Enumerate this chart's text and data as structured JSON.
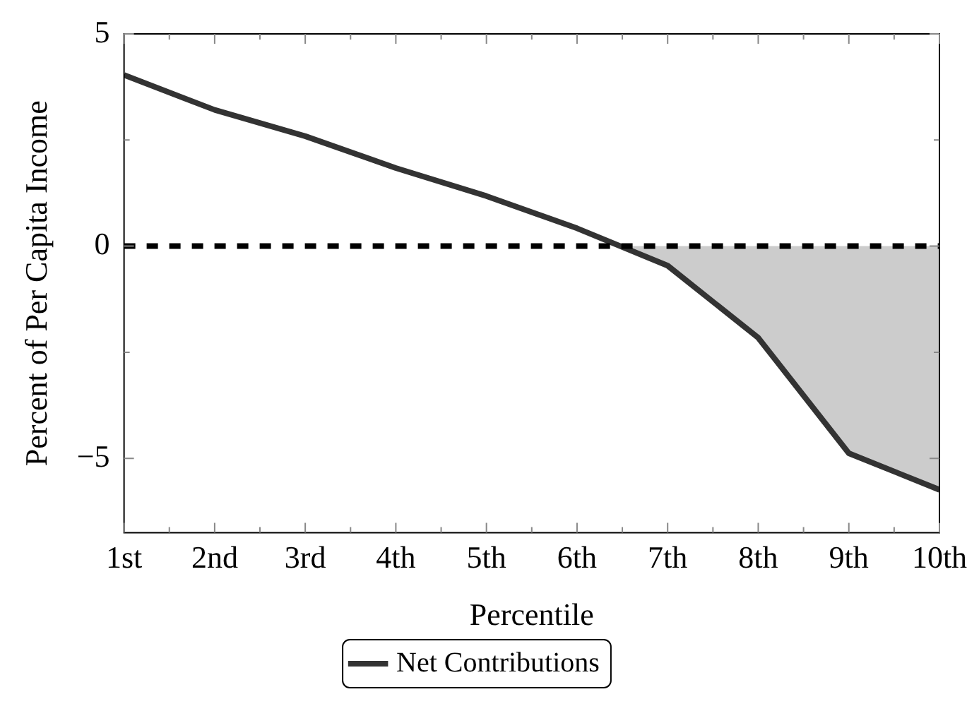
{
  "chart_data": {
    "type": "line",
    "xlabel": "Percentile",
    "ylabel": "Percent of Per Capita Income",
    "x": [
      1,
      2,
      3,
      4,
      5,
      6,
      7,
      8,
      9,
      10
    ],
    "series": [
      {
        "name": "Net Contributions",
        "color": "#333333",
        "values": [
          4.03,
          3.21,
          2.59,
          1.84,
          1.18,
          0.42,
          -0.46,
          -2.16,
          -4.88,
          -5.74
        ]
      },
      {
        "type": "area",
        "color": "#cccccc",
        "x": [
          6.5,
          7,
          8,
          9,
          10
        ],
        "values": [
          0,
          -0.46,
          -2.16,
          -4.88,
          -5.74
        ]
      }
    ],
    "xlim": [
      1,
      10
    ],
    "xticks": [
      {
        "value": 1,
        "label": "1st"
      },
      {
        "value": 1.5,
        "label": null
      },
      {
        "value": 2,
        "label": "2nd"
      },
      {
        "value": 2.5,
        "label": null
      },
      {
        "value": 3,
        "label": "3rd"
      },
      {
        "value": 3.5,
        "label": null
      },
      {
        "value": 4,
        "label": "4th"
      },
      {
        "value": 4.5,
        "label": null
      },
      {
        "value": 5,
        "label": "5th"
      },
      {
        "value": 5.5,
        "label": null
      },
      {
        "value": 6,
        "label": "6th"
      },
      {
        "value": 6.5,
        "label": null
      },
      {
        "value": 7,
        "label": "7th"
      },
      {
        "value": 7.5,
        "label": null
      },
      {
        "value": 8,
        "label": "8th"
      },
      {
        "value": 8.5,
        "label": null
      },
      {
        "value": 9,
        "label": "9th"
      },
      {
        "value": 9.5,
        "label": null
      },
      {
        "value": 10,
        "label": "10th"
      }
    ],
    "ylim": [
      -6.75,
      5
    ],
    "yticks": [
      {
        "value": -5,
        "label": "−5"
      },
      {
        "value": -2.5,
        "label": null
      },
      0,
      {
        "value": 2.5,
        "label": null
      },
      5
    ],
    "ref_lines": [
      {
        "axis": "y",
        "value": 0,
        "color": "#000000",
        "line_style": "dashed"
      }
    ],
    "grid": false,
    "legend": "bottom",
    "marker": "none",
    "line_style": "solid"
  }
}
